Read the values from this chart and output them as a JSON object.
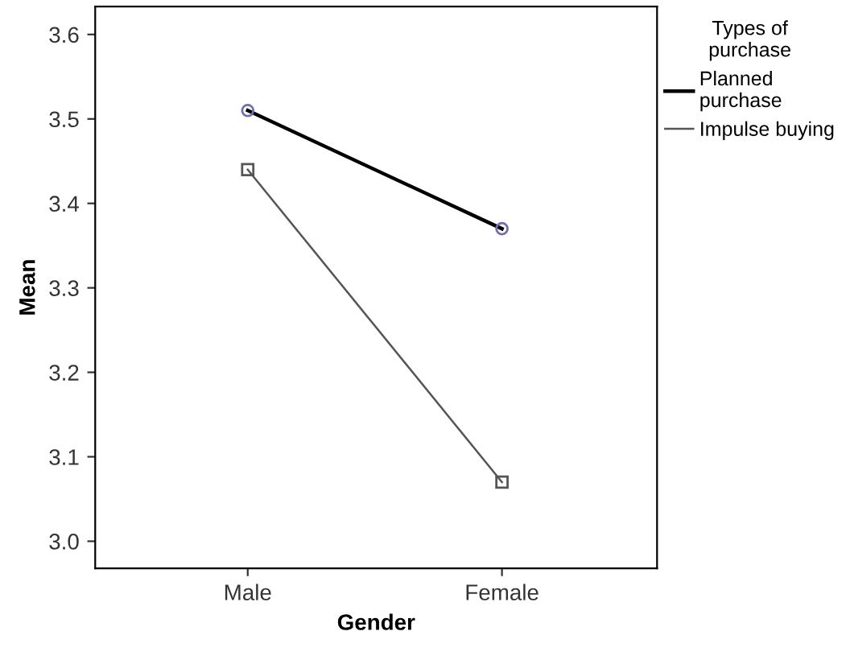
{
  "chart_data": {
    "type": "line",
    "xlabel": "Gender",
    "ylabel": "Mean",
    "legend_title": "Types of\npurchase",
    "categories": [
      "Male",
      "Female"
    ],
    "series": [
      {
        "name": "Planned purchase",
        "color": "#000000",
        "marker": "circle",
        "values": [
          3.51,
          3.37
        ]
      },
      {
        "name": "Impulse buying",
        "color": "#555555",
        "marker": "square",
        "values": [
          3.44,
          3.07
        ]
      }
    ],
    "ylim": [
      2.968,
      3.633
    ],
    "yticks": [
      {
        "value": 3.0,
        "label": "3.0"
      },
      3.1,
      3.2,
      3.3,
      3.4,
      3.5,
      3.6
    ],
    "grid": false,
    "legend": "top right",
    "line_style": "solid"
  }
}
